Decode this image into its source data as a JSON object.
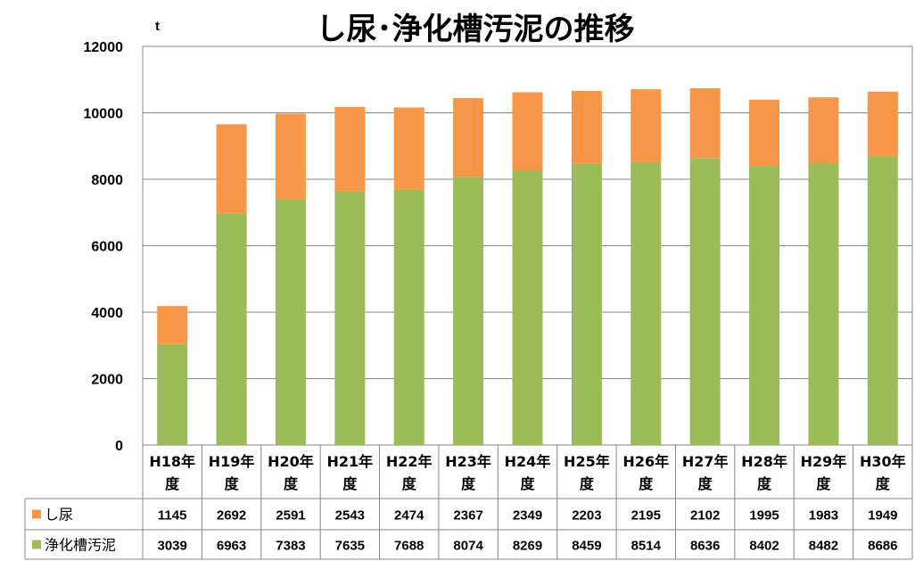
{
  "chart_data": {
    "type": "bar",
    "stacked": true,
    "title": "し尿･浄化槽汚泥の推移",
    "unit": "t",
    "ylim": [
      0,
      12000
    ],
    "yticks": [
      "0",
      "2000",
      "4000",
      "6000",
      "8000",
      "10000",
      "12000"
    ],
    "grid": true,
    "categories": [
      {
        "line1": "H18年",
        "line2": "度"
      },
      {
        "line1": "H19年",
        "line2": "度"
      },
      {
        "line1": "H20年",
        "line2": "度"
      },
      {
        "line1": "H21年",
        "line2": "度"
      },
      {
        "line1": "H22年",
        "line2": "度"
      },
      {
        "line1": "H23年",
        "line2": "度"
      },
      {
        "line1": "H24年",
        "line2": "度"
      },
      {
        "line1": "H25年",
        "line2": "度"
      },
      {
        "line1": "H26年",
        "line2": "度"
      },
      {
        "line1": "H27年",
        "line2": "度"
      },
      {
        "line1": "H28年",
        "line2": "度"
      },
      {
        "line1": "H29年",
        "line2": "度"
      },
      {
        "line1": "H30年",
        "line2": "度"
      }
    ],
    "series": [
      {
        "name": "し尿",
        "color": "#f79646",
        "values": [
          1145,
          2692,
          2591,
          2543,
          2474,
          2367,
          2349,
          2203,
          2195,
          2102,
          1995,
          1983,
          1949
        ]
      },
      {
        "name": "浄化槽汚泥",
        "color": "#9bbb59",
        "values": [
          3039,
          6963,
          7383,
          7635,
          7688,
          8074,
          8269,
          8459,
          8514,
          8636,
          8402,
          8482,
          8686
        ]
      }
    ],
    "stack_order_bottom_to_top": [
      "浄化槽汚泥",
      "し尿"
    ],
    "table_rows_order": [
      "し尿",
      "浄化槽汚泥"
    ]
  }
}
